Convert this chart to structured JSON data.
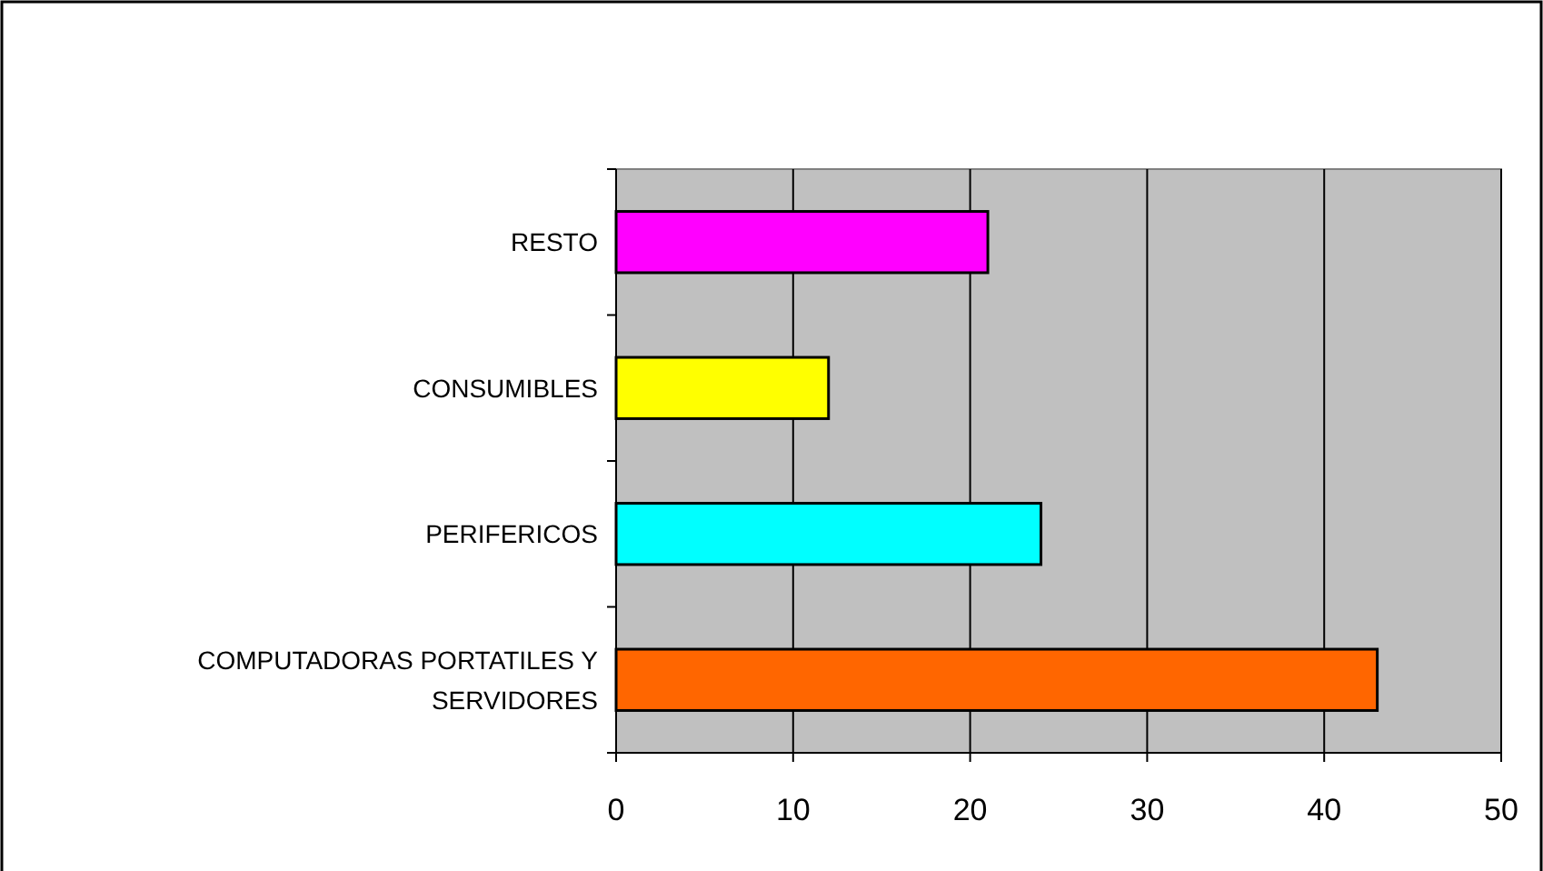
{
  "chart_data": {
    "type": "bar",
    "orientation": "horizontal",
    "categories": [
      "RESTO",
      "CONSUMIBLES",
      "PERIFERICOS",
      "COMPUTADORAS PORTATILES Y SERVIDORES"
    ],
    "values": [
      21,
      12,
      24,
      43
    ],
    "colors": [
      "#ff00ff",
      "#ffff00",
      "#00ffff",
      "#ff6600"
    ],
    "xlim": [
      0,
      50
    ],
    "xticks": [
      0,
      10,
      20,
      30,
      40,
      50
    ],
    "grid": "x"
  }
}
